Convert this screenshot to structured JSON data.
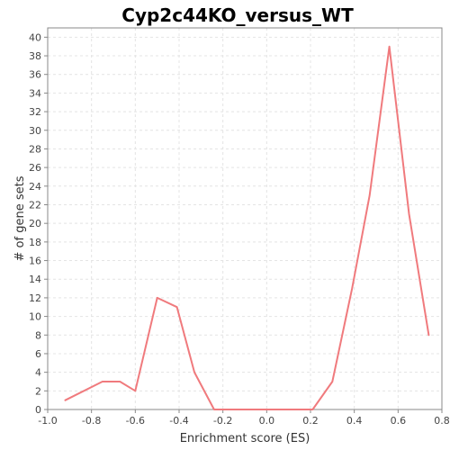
{
  "chart_data": {
    "type": "line",
    "title": "Cyp2c44KO_versus_WT",
    "xlabel": "Enrichment score (ES)",
    "ylabel": "# of gene sets",
    "xlim": [
      -1.0,
      0.8
    ],
    "ylim": [
      0,
      41
    ],
    "grid": true,
    "x_ticks": [
      -1.0,
      -0.8,
      -0.6,
      -0.4,
      -0.2,
      0.0,
      0.2,
      0.4,
      0.6,
      0.8
    ],
    "x_tick_labels": [
      "-1.0",
      "-0.8",
      "-0.6",
      "-0.4",
      "-0.2",
      "0.0",
      "0.2",
      "0.4",
      "0.6",
      "0.8"
    ],
    "y_ticks": [
      0,
      2,
      4,
      6,
      8,
      10,
      12,
      14,
      16,
      18,
      20,
      22,
      24,
      26,
      28,
      30,
      32,
      34,
      36,
      38,
      40
    ],
    "y_tick_labels": [
      "0",
      "2",
      "4",
      "6",
      "8",
      "10",
      "12",
      "14",
      "16",
      "18",
      "20",
      "22",
      "24",
      "26",
      "28",
      "30",
      "32",
      "34",
      "36",
      "38",
      "40"
    ],
    "series": [
      {
        "color": "#f07a7d",
        "x": [
          -0.92,
          -0.75,
          -0.67,
          -0.6,
          -0.5,
          -0.41,
          -0.33,
          -0.24,
          -0.16,
          -0.07,
          0.02,
          0.12,
          0.21,
          0.3,
          0.39,
          0.47,
          0.56,
          0.65,
          0.74
        ],
        "y": [
          1,
          3,
          3,
          2,
          12,
          11,
          4,
          0,
          0,
          0,
          0,
          0,
          0,
          3,
          13,
          23,
          39,
          21,
          8
        ]
      }
    ]
  }
}
